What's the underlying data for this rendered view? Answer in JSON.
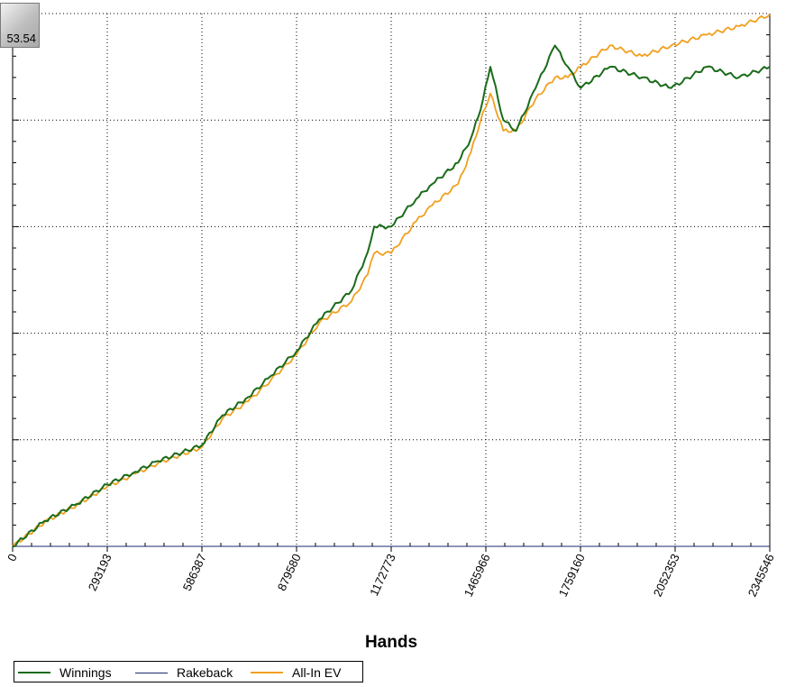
{
  "badge_value": "53.54",
  "colors": {
    "winnings": "#1a6b1a",
    "rakeback": "#1c2a6e",
    "allin_ev": "#f0a020",
    "grid": "#000000",
    "axis": "#000000"
  },
  "chart_data": {
    "type": "line",
    "title": "",
    "xlabel": "Hands",
    "ylabel": "",
    "xlim": [
      0,
      2345546
    ],
    "ylim": [
      0,
      50
    ],
    "x_ticks": [
      0,
      293193,
      586387,
      879580,
      1172773,
      1465966,
      1759160,
      2052353,
      2345546
    ],
    "x_tick_labels": [
      "0",
      "293193",
      "586387",
      "879580",
      "1172773",
      "1465966",
      "1759160",
      "2052353",
      "2345546"
    ],
    "y_gridlines": [
      10,
      20,
      30,
      40
    ],
    "grid": true,
    "legend_position": "bottom-left",
    "series": [
      {
        "name": "Winnings",
        "x": [
          0,
          100000,
          200000,
          293193,
          380000,
          450000,
          586387,
          650000,
          730000,
          800000,
          879580,
          950000,
          1050000,
          1100000,
          1120000,
          1172773,
          1250000,
          1300000,
          1380000,
          1420000,
          1450000,
          1480000,
          1520000,
          1560000,
          1620000,
          1680000,
          1720000,
          1760000,
          1850000,
          1950000,
          2040000,
          2150000,
          2250000,
          2345546
        ],
        "y": [
          0,
          2.4,
          4.0,
          5.8,
          7.0,
          8.0,
          9.5,
          12.3,
          14.0,
          16.0,
          18.3,
          21.3,
          24.0,
          27.6,
          30.0,
          30.0,
          32.6,
          34.0,
          36.0,
          38.3,
          41.0,
          45.0,
          40.0,
          39.0,
          43.0,
          47.0,
          45.0,
          43.0,
          45.0,
          44.0,
          43.0,
          45.0,
          44.0,
          45.0
        ]
      },
      {
        "name": "Rakeback",
        "x": [
          0,
          2345546
        ],
        "y": [
          0,
          0
        ]
      },
      {
        "name": "All-In EV",
        "x": [
          0,
          100000,
          200000,
          293193,
          380000,
          450000,
          586387,
          650000,
          730000,
          800000,
          879580,
          950000,
          1050000,
          1100000,
          1120000,
          1172773,
          1250000,
          1300000,
          1380000,
          1420000,
          1450000,
          1480000,
          1520000,
          1560000,
          1620000,
          1680000,
          1720000,
          1760000,
          1850000,
          1950000,
          2040000,
          2150000,
          2250000,
          2345546
        ],
        "y": [
          0,
          2.3,
          3.9,
          5.6,
          6.8,
          7.8,
          9.3,
          12.0,
          13.6,
          15.6,
          18.0,
          21.0,
          23.0,
          25.5,
          27.5,
          27.5,
          30.5,
          32.0,
          34.0,
          37.0,
          40.0,
          42.5,
          39.0,
          39.0,
          42.0,
          44.0,
          44.0,
          45.0,
          47.0,
          46.0,
          47.0,
          48.0,
          48.8,
          49.9
        ]
      }
    ]
  }
}
